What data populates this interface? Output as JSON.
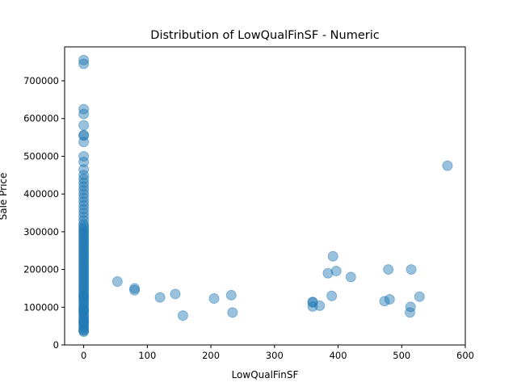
{
  "chart_data": {
    "type": "scatter",
    "title": "Distribution of LowQualFinSF - Numeric",
    "xlabel": "LowQualFinSF",
    "ylabel": "Sale Price",
    "xlim": [
      -30,
      600
    ],
    "ylim": [
      0,
      790000
    ],
    "xticks": [
      0,
      100,
      200,
      300,
      400,
      500,
      600
    ],
    "yticks": [
      0,
      100000,
      200000,
      300000,
      400000,
      500000,
      600000,
      700000
    ],
    "grid": false,
    "marker_color": "#1f77b4",
    "marker_alpha": 0.45,
    "series": [
      {
        "x": [
          0,
          0,
          0,
          0,
          0,
          0,
          0,
          0,
          0,
          0,
          0,
          0,
          0,
          0,
          0,
          0,
          0,
          0,
          0,
          0,
          0,
          0,
          0,
          0,
          0,
          0,
          0,
          0,
          0,
          0,
          0,
          0,
          0,
          0,
          0,
          0,
          0,
          0,
          0,
          0,
          0,
          0,
          0,
          0,
          0,
          0,
          0,
          0,
          0,
          0,
          0,
          0,
          0,
          0,
          0,
          0,
          0,
          0,
          0,
          0,
          0,
          0,
          0,
          0,
          0,
          0,
          0,
          0,
          0,
          0,
          0,
          0,
          0,
          0,
          0,
          0,
          0,
          0,
          0,
          0,
          0,
          0,
          0,
          0,
          0,
          0,
          53,
          80,
          80,
          120,
          144,
          156,
          205,
          232,
          234,
          360,
          360,
          360,
          371,
          384,
          390,
          392,
          397,
          420,
          473,
          479,
          481,
          513,
          514,
          515,
          528,
          572
        ],
        "y": [
          35000,
          40000,
          45000,
          50000,
          55000,
          60000,
          65000,
          70000,
          75000,
          80000,
          85000,
          90000,
          95000,
          100000,
          105000,
          110000,
          115000,
          120000,
          125000,
          130000,
          135000,
          140000,
          145000,
          150000,
          155000,
          160000,
          165000,
          170000,
          175000,
          180000,
          185000,
          190000,
          195000,
          200000,
          205000,
          210000,
          215000,
          220000,
          225000,
          230000,
          235000,
          240000,
          245000,
          250000,
          255000,
          260000,
          265000,
          270000,
          275000,
          280000,
          285000,
          290000,
          295000,
          300000,
          305000,
          310000,
          315000,
          320000,
          330000,
          340000,
          350000,
          360000,
          370000,
          380000,
          390000,
          400000,
          410000,
          420000,
          430000,
          440000,
          450000,
          465000,
          485000,
          500000,
          538000,
          555000,
          556000,
          582000,
          612000,
          625000,
          745000,
          755000,
          38000,
          62000,
          92000,
          128000,
          168000,
          145000,
          150000,
          126000,
          135000,
          78000,
          123000,
          132000,
          86000,
          102000,
          113000,
          114000,
          104000,
          190000,
          130000,
          235000,
          196000,
          180000,
          116000,
          200000,
          121000,
          86000,
          101000,
          200000,
          128000,
          475000
        ]
      }
    ]
  }
}
